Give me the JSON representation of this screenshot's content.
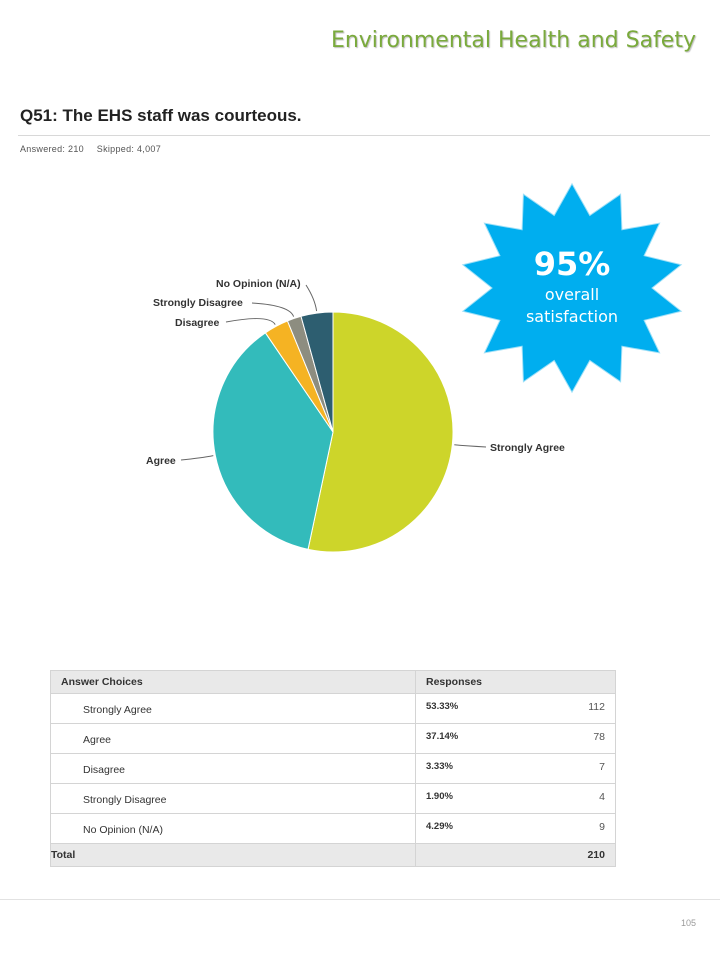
{
  "header": {
    "title": "Environmental Health and Safety"
  },
  "question": {
    "title": "Q51: The EHS staff was courteous.",
    "answered": "Answered: 210",
    "skipped": "Skipped: 4,007"
  },
  "badge": {
    "percent": "95%",
    "caption": "overall satisfaction",
    "color": "#00aeef"
  },
  "chart_data": {
    "type": "pie",
    "categories": [
      "Strongly Agree",
      "Agree",
      "Disagree",
      "Strongly Disagree",
      "No Opinion (N/A)"
    ],
    "values": [
      53.33,
      37.14,
      3.33,
      1.9,
      4.29
    ],
    "colors": [
      "#cdd52a",
      "#33bbbb",
      "#f5b323",
      "#8d8d80",
      "#2d5e70"
    ],
    "start": "12 o'clock, clockwise",
    "legend": "none (direct labels)"
  },
  "table": {
    "headers": [
      "Answer Choices",
      "Responses"
    ],
    "rows": [
      {
        "choice": "Strongly Agree",
        "percent": "53.33%",
        "count": "112"
      },
      {
        "choice": "Agree",
        "percent": "37.14%",
        "count": "78"
      },
      {
        "choice": "Disagree",
        "percent": "3.33%",
        "count": "7"
      },
      {
        "choice": "Strongly Disagree",
        "percent": "1.90%",
        "count": "4"
      },
      {
        "choice": "No Opinion (N/A)",
        "percent": "4.29%",
        "count": "9"
      }
    ],
    "total_label": "Total",
    "total_count": "210"
  },
  "footer": {
    "page_number": "105"
  }
}
